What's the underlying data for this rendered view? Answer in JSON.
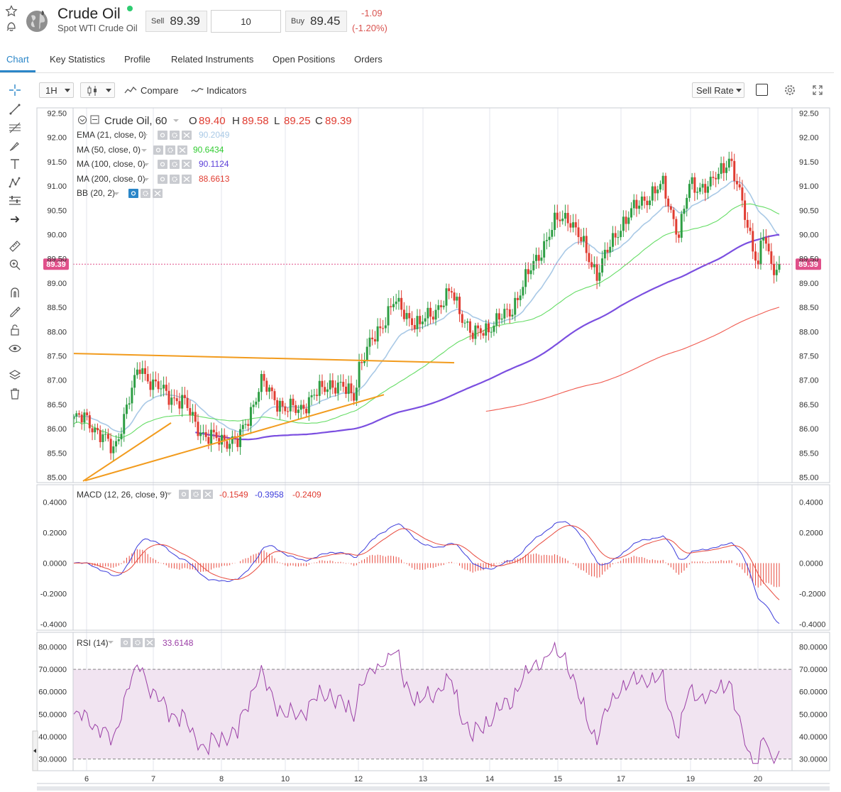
{
  "header": {
    "title": "Crude Oil",
    "subtitle": "Spot WTI Crude Oil",
    "sell_label": "Sell",
    "sell_value": "89.39",
    "quantity": "10",
    "buy_label": "Buy",
    "buy_value": "89.45",
    "change": "-1.09",
    "change_pct": "(-1.20%)",
    "status_color": "#2ecc71"
  },
  "tabs": [
    {
      "label": "Chart",
      "active": true
    },
    {
      "label": "Key Statistics"
    },
    {
      "label": "Profile"
    },
    {
      "label": "Related Instruments"
    },
    {
      "label": "Open Positions"
    },
    {
      "label": "Orders"
    }
  ],
  "toolbar": {
    "interval": "1H",
    "compare": "Compare",
    "indicators": "Indicators",
    "rate_type": "Sell Rate"
  },
  "colors": {
    "up": "#2e9e44",
    "down": "#e03c31",
    "ema21": "#a9c9e6",
    "ma50": "#66dd66",
    "ma100": "#7b4fe0",
    "ma200": "#f05a4f",
    "trendline": "#f29b1d",
    "macd": "#3b3bdb",
    "signal": "#e8493d",
    "rsi": "#9b3fa6",
    "rsi_band": "#f1e4f1",
    "price_tag": "#e0508a"
  },
  "legend": {
    "symbol": "Crude Oil, 60",
    "o_label": "O",
    "o": "89.40",
    "h_label": "H",
    "h": "89.58",
    "l_label": "L",
    "l": "89.25",
    "c_label": "C",
    "c": "89.39",
    "indicators": [
      {
        "label": "EMA (21, close, 0)",
        "value": "90.2049",
        "color": "#a9c9e6"
      },
      {
        "label": "MA (50, close, 0)",
        "value": "90.6434",
        "color": "#33cc33"
      },
      {
        "label": "MA (100, close, 0)",
        "value": "90.1124",
        "color": "#5b3fd8"
      },
      {
        "label": "MA (200, close, 0)",
        "value": "88.6613",
        "color": "#e03c31"
      },
      {
        "label": "BB (20, 2)",
        "value": "",
        "color": "#333333"
      }
    ],
    "macd_label": "MACD (12, 26, close, 9)",
    "macd_values": [
      "-0.1549",
      "-0.3958",
      "-0.2409"
    ],
    "rsi_label": "RSI (14)",
    "rsi_value": "33.6148"
  },
  "current_price_tag": "89.39",
  "chart_data": [
    {
      "type": "candlestick",
      "title": "Crude Oil, 60",
      "interval": "1H",
      "x_ticks": [
        "6",
        "7",
        "8",
        "10",
        "12",
        "13",
        "14",
        "15",
        "17",
        "19",
        "20"
      ],
      "y_ticks": [
        "85.00",
        "85.50",
        "86.00",
        "86.50",
        "87.00",
        "87.50",
        "88.00",
        "88.50",
        "89.00",
        "89.50",
        "90.00",
        "90.50",
        "91.00",
        "91.50",
        "92.00",
        "92.50"
      ],
      "ylim": [
        85.0,
        92.5
      ],
      "key_closes": [
        {
          "date": "6",
          "close": 86.2
        },
        {
          "date": "7",
          "close": 86.9
        },
        {
          "date": "8",
          "close": 85.8
        },
        {
          "date": "10",
          "close": 86.4
        },
        {
          "date": "12",
          "close": 87.3
        },
        {
          "date": "13",
          "close": 88.2
        },
        {
          "date": "14",
          "close": 88.1
        },
        {
          "date": "15",
          "close": 90.3
        },
        {
          "date": "17",
          "close": 90.2
        },
        {
          "date": "19",
          "close": 91.0
        },
        {
          "date": "20",
          "close": 89.39
        }
      ],
      "last": {
        "open": 89.4,
        "high": 89.58,
        "low": 89.25,
        "close": 89.39
      },
      "overlays": [
        "EMA (21, close, 0)",
        "MA (50, close, 0)",
        "MA (100, close, 0)",
        "MA (200, close, 0)",
        "BB (20, 2)"
      ]
    },
    {
      "type": "line",
      "title": "MACD (12, 26, close, 9)",
      "y_ticks": [
        "0.4000",
        "0.2000",
        "0.0000",
        "-0.2000",
        "-0.4000"
      ],
      "ylim": [
        -0.4,
        0.4
      ],
      "last": {
        "histogram": -0.1549,
        "macd": -0.3958,
        "signal": -0.2409
      }
    },
    {
      "type": "line",
      "title": "RSI (14)",
      "y_ticks": [
        "80.0000",
        "70.0000",
        "60.0000",
        "50.0000",
        "40.0000",
        "30.0000"
      ],
      "ylim": [
        30,
        80
      ],
      "bands": [
        30,
        70
      ],
      "last": 33.6148
    }
  ]
}
